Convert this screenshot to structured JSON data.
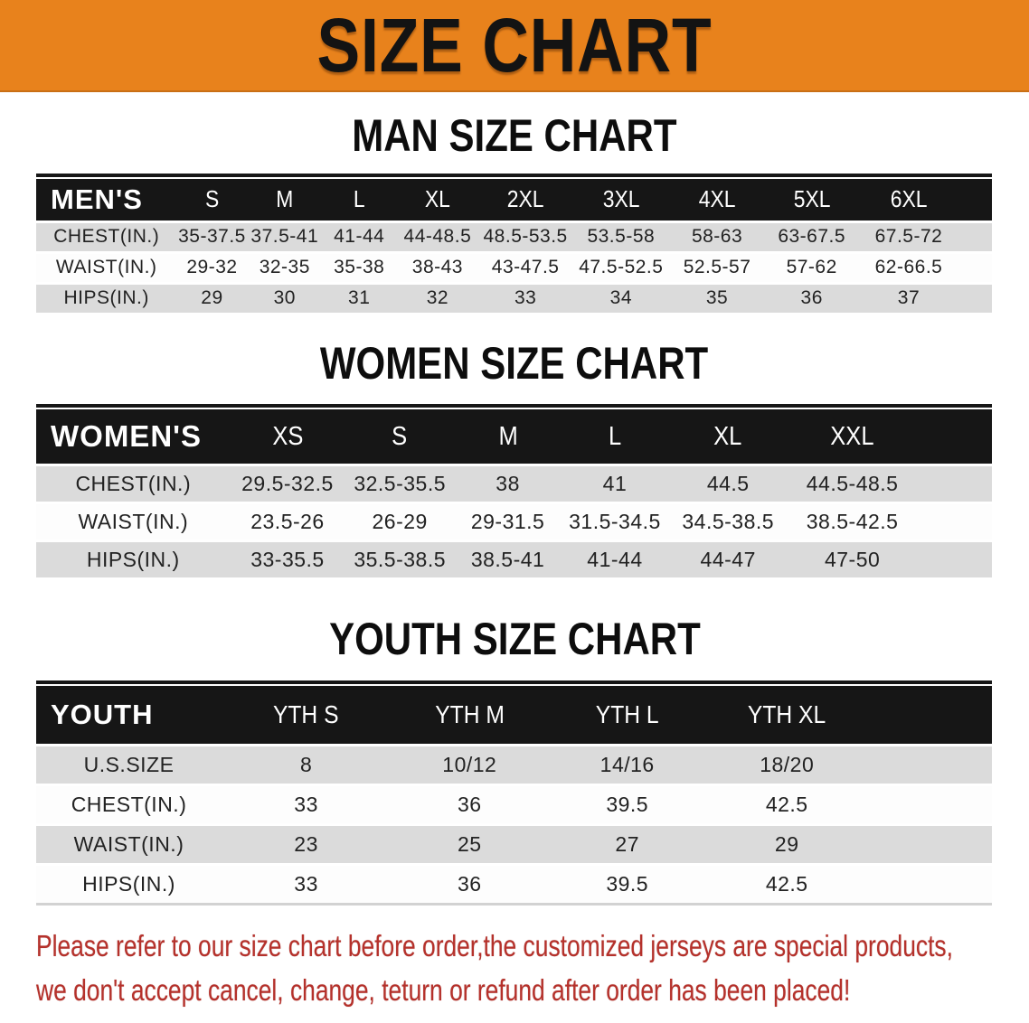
{
  "banner": {
    "title": "SIZE CHART"
  },
  "sections": [
    {
      "id": "man",
      "title": "MAN SIZE CHART",
      "table": {
        "corner_label": "MEN'S",
        "size_headers": [
          "S",
          "M",
          "L",
          "XL",
          "2XL",
          "3XL",
          "4XL",
          "5XL",
          "6XL"
        ],
        "rows": [
          {
            "label": "CHEST(IN.)",
            "values": [
              "35-37.5",
              "37.5-41",
              "41-44",
              "44-48.5",
              "48.5-53.5",
              "53.5-58",
              "58-63",
              "63-67.5",
              "67.5-72"
            ]
          },
          {
            "label": "WAIST(IN.)",
            "values": [
              "29-32",
              "32-35",
              "35-38",
              "38-43",
              "43-47.5",
              "47.5-52.5",
              "52.5-57",
              "57-62",
              "62-66.5"
            ]
          },
          {
            "label": "HIPS(IN.)",
            "values": [
              "29",
              "30",
              "31",
              "32",
              "33",
              "34",
              "35",
              "36",
              "37"
            ]
          }
        ]
      }
    },
    {
      "id": "women",
      "title": "WOMEN SIZE CHART",
      "table": {
        "corner_label": "WOMEN'S",
        "size_headers": [
          "XS",
          "S",
          "M",
          "L",
          "XL",
          "XXL"
        ],
        "rows": [
          {
            "label": "CHEST(IN.)",
            "values": [
              "29.5-32.5",
              "32.5-35.5",
              "38",
              "41",
              "44.5",
              "44.5-48.5"
            ]
          },
          {
            "label": "WAIST(IN.)",
            "values": [
              "23.5-26",
              "26-29",
              "29-31.5",
              "31.5-34.5",
              "34.5-38.5",
              "38.5-42.5"
            ]
          },
          {
            "label": "HIPS(IN.)",
            "values": [
              "33-35.5",
              "35.5-38.5",
              "38.5-41",
              "41-44",
              "44-47",
              "47-50"
            ]
          }
        ]
      }
    },
    {
      "id": "youth",
      "title": "YOUTH SIZE CHART",
      "table": {
        "corner_label": "YOUTH",
        "size_headers": [
          "YTH S",
          "YTH M",
          "YTH L",
          "YTH XL"
        ],
        "rows": [
          {
            "label": "U.S.SIZE",
            "values": [
              "8",
              "10/12",
              "14/16",
              "18/20"
            ]
          },
          {
            "label": "CHEST(IN.)",
            "values": [
              "33",
              "36",
              "39.5",
              "42.5"
            ]
          },
          {
            "label": "WAIST(IN.)",
            "values": [
              "23",
              "25",
              "27",
              "29"
            ]
          },
          {
            "label": "HIPS(IN.)",
            "values": [
              "33",
              "36",
              "39.5",
              "42.5"
            ]
          }
        ]
      }
    }
  ],
  "footer_note": {
    "line1": "Please refer to our size chart before order,the customized jerseys are special products,",
    "line2": "we don't accept cancel, change, teturn or refund after order has been placed!"
  },
  "colors": {
    "banner_orange": "#E8821C",
    "header_black": "#161616",
    "row_gray": "#DBDBDB",
    "row_white": "#FDFDFD",
    "note_red": "#B5312B"
  }
}
